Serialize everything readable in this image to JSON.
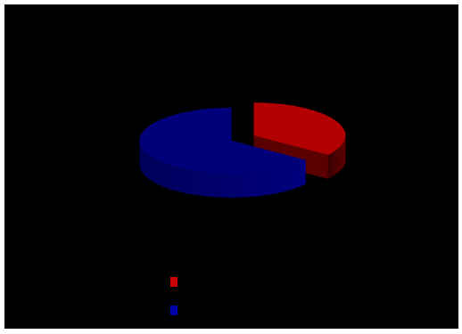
{
  "chart_data": {
    "type": "pie",
    "style": "3d-exploded",
    "title": "",
    "slices": [
      {
        "label": "",
        "value": 35,
        "color": "#b30000",
        "side_color": "#5a0000"
      },
      {
        "label": "",
        "value": 65,
        "color": "#00007a",
        "side_color": "#00005c"
      }
    ],
    "legend_position": "bottom-center",
    "background_color": "#000000",
    "frame_color": "#ffffff"
  }
}
